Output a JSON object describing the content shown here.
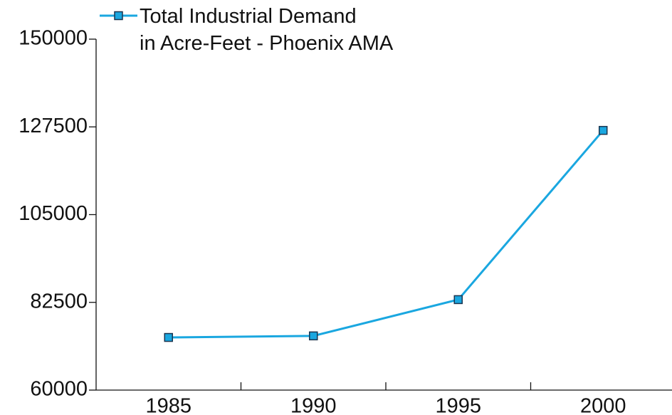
{
  "chart_data": {
    "type": "line",
    "categories": [
      "1985",
      "1990",
      "1995",
      "2000"
    ],
    "series": [
      {
        "name": "Total Industrial Demand\nin Acre-Feet - Phoenix AMA",
        "color": "#1aa7e0",
        "marker_edge": "#1a3550",
        "values": [
          73500,
          73900,
          83200,
          126600
        ]
      }
    ],
    "ylim": [
      60000,
      150000
    ],
    "yticks": [
      60000,
      82500,
      105000,
      127500,
      150000
    ],
    "grid": false,
    "legend": "top-left"
  }
}
